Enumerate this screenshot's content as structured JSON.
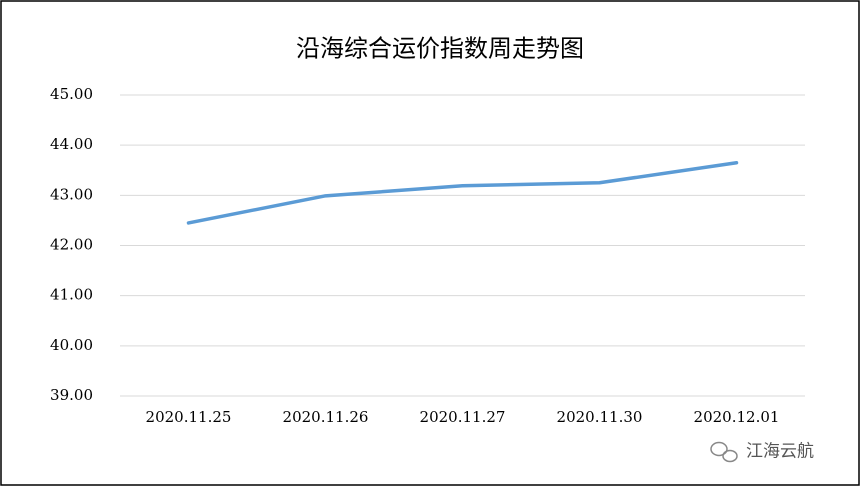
{
  "chart_data": {
    "type": "line",
    "title": "沿海综合运价指数周走势图",
    "categories": [
      "2020.11.25",
      "2020.11.26",
      "2020.11.27",
      "2020.11.30",
      "2020.12.01"
    ],
    "series": [
      {
        "name": "沿海综合运价指数",
        "color": "#5b9bd5",
        "values": [
          42.45,
          42.99,
          43.19,
          43.25,
          43.65
        ]
      }
    ],
    "ylim": [
      39,
      45
    ],
    "yticks": [
      {
        "value": 39,
        "label": "39.00"
      },
      {
        "value": 40,
        "label": "40.00"
      },
      {
        "value": 41,
        "label": "41.00"
      },
      {
        "value": 42,
        "label": "42.00"
      },
      {
        "value": 43,
        "label": "43.00"
      },
      {
        "value": 44,
        "label": "44.00"
      },
      {
        "value": 45,
        "label": "45.00"
      }
    ],
    "grid": true,
    "watermark": "江海云航"
  }
}
